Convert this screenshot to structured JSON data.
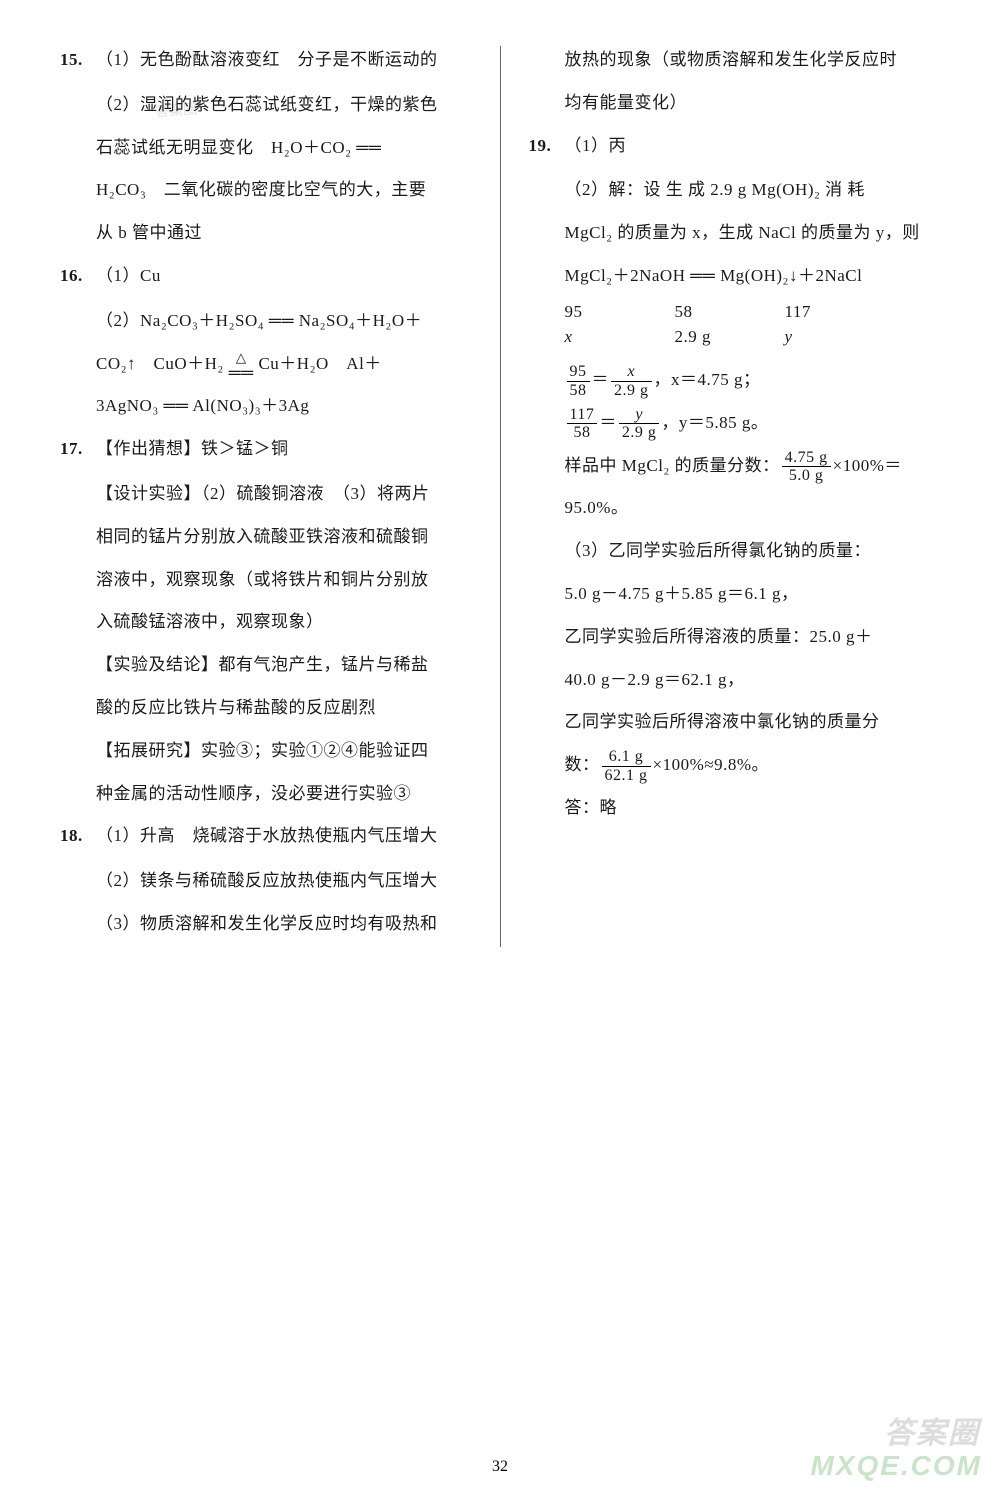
{
  "left": {
    "q15": {
      "num": "15.",
      "l1": "（1）无色酚酞溶液变红　分子是不断运动的",
      "l2": "（2）湿润的紫色石蕊试纸变红，干燥的紫色",
      "l3": "石蕊试纸无明显变化　H₂O＋CO₂ ══",
      "l4": "H₂CO₃　二氧化碳的密度比空气的大，主要",
      "l5": "从 b 管中通过"
    },
    "q16": {
      "num": "16.",
      "l1": "（1）Cu",
      "l2": "（2）Na₂CO₃＋H₂SO₄ ══ Na₂SO₄＋H₂O＋",
      "l3a": "CO₂↑　CuO＋H₂ ",
      "l3tri": "△",
      "l3b": " Cu＋H₂O　Al＋",
      "l4": "3AgNO₃ ══ Al(NO₃)₃＋3Ag"
    },
    "q17": {
      "num": "17.",
      "l1": "【作出猜想】铁＞锰＞铜",
      "l2": "【设计实验】（2）硫酸铜溶液　（3）将两片",
      "l3": "相同的锰片分别放入硫酸亚铁溶液和硫酸铜",
      "l4": "溶液中，观察现象（或将铁片和铜片分别放",
      "l5": "入硫酸锰溶液中，观察现象）",
      "l6": "【实验及结论】都有气泡产生，锰片与稀盐",
      "l7": "酸的反应比铁片与稀盐酸的反应剧烈",
      "l8": "【拓展研究】实验③；实验①②④能验证四",
      "l9": "种金属的活动性顺序，没必要进行实验③"
    },
    "q18": {
      "num": "18.",
      "l1": "（1）升高　烧碱溶于水放热使瓶内气压增大",
      "l2": "（2）镁条与稀硫酸反应放热使瓶内气压增大",
      "l3": "（3）物质溶解和发生化学反应时均有吸热和"
    }
  },
  "right": {
    "cont18": {
      "l1": "放热的现象（或物质溶解和发生化学反应时",
      "l2": "均有能量变化）"
    },
    "q19": {
      "num": "19.",
      "l1": "（1）丙",
      "l2": "（2）解：设 生 成 2.9 g Mg(OH)₂ 消 耗",
      "l3": "MgCl₂ 的质量为 x，生成 NaCl 的质量为 y，则",
      "eq": "MgCl₂＋2NaOH ══ Mg(OH)₂↓＋2NaCl",
      "r1a": "95",
      "r1b": "58",
      "r1c": "117",
      "r2a": "x",
      "r2b": "2.9 g",
      "r2c": "y",
      "f1n": "95",
      "f1d": "58",
      "f1rn": "x",
      "f1rd": "2.9 g",
      "f1ans": "，x＝4.75 g；",
      "f2n": "117",
      "f2d": "58",
      "f2rn": "y",
      "f2rd": "2.9 g",
      "f2ans": "，y＝5.85 g。",
      "l4a": "样品中 MgCl₂ 的质量分数：",
      "f3n": "4.75 g",
      "f3d": "5.0 g",
      "l4b": "×100%＝",
      "l5": "95.0%。",
      "l6": "（3）乙同学实验后所得氯化钠的质量：",
      "l7": "5.0 g－4.75 g＋5.85 g＝6.1 g，",
      "l8": "乙同学实验后所得溶液的质量：25.0 g＋",
      "l9": "40.0 g－2.9 g＝62.1 g，",
      "l10": "乙同学实验后所得溶液中氯化钠的质量分",
      "l11a": "数：",
      "f4n": "6.1 g",
      "f4d": "62.1 g",
      "l11b": "×100%≈9.8%。",
      "l12": "答：略"
    }
  },
  "watermark_top": "答案圈",
  "watermark_a": "答案圈",
  "watermark_b": "MXQE.COM",
  "page_number": "32"
}
